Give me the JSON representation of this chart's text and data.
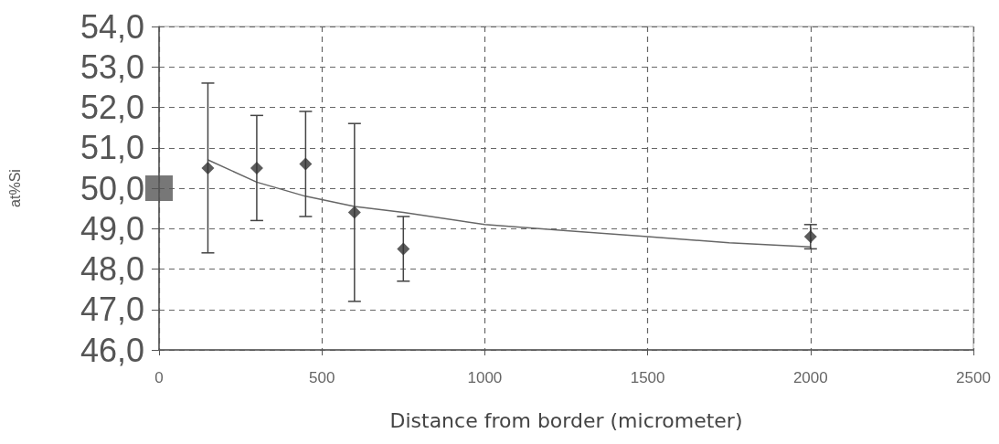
{
  "chart_data": {
    "type": "scatter",
    "xlabel": "Distance from border (micrometer)",
    "ylabel": "at%Si",
    "xlim": [
      0,
      2500
    ],
    "xticks": [
      0,
      500,
      1000,
      1500,
      2000,
      2500
    ],
    "ylim": [
      46,
      54
    ],
    "yticks": [
      {
        "value": 46,
        "label": "46,0"
      },
      {
        "value": 47,
        "label": "47,0"
      },
      {
        "value": 48,
        "label": "48,0"
      },
      {
        "value": 49,
        "label": "49,0"
      },
      {
        "value": 50,
        "label": "50,0"
      },
      {
        "value": 51,
        "label": "51,0"
      },
      {
        "value": 52,
        "label": "52,0"
      },
      {
        "value": 53,
        "label": "53,0"
      },
      {
        "value": 54,
        "label": "54,0"
      }
    ],
    "grid": true,
    "marker": "diamond",
    "series": [
      {
        "type": "line",
        "marker": "none",
        "color": "#666666",
        "x": [
          150,
          300,
          450,
          600,
          750,
          1000,
          1250,
          1500,
          1750,
          2000
        ],
        "values": [
          50.7,
          50.15,
          49.8,
          49.55,
          49.4,
          49.1,
          48.95,
          48.8,
          48.65,
          48.55
        ]
      },
      {
        "type": "scatter",
        "marker": "square",
        "color": "#555555",
        "x": [
          0
        ],
        "values": [
          50.0
        ]
      },
      {
        "color": "#333333",
        "x": [
          150,
          300,
          450,
          600,
          750,
          2000
        ],
        "values": [
          50.5,
          50.5,
          50.6,
          49.4,
          48.5,
          48.8
        ],
        "errors": [
          2.1,
          1.3,
          1.3,
          2.2,
          0.8,
          0.3
        ]
      }
    ]
  }
}
